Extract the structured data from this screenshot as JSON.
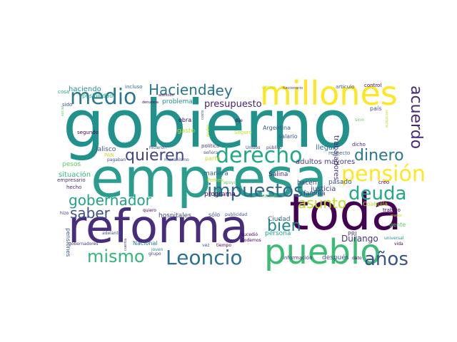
{
  "words": [
    {
      "text": "gobierno",
      "color": "#21918c",
      "weight": 1.0
    },
    {
      "text": "empresa",
      "color": "#2a9d8f",
      "weight": 0.88
    },
    {
      "text": "toda",
      "color": "#440154",
      "weight": 0.8
    },
    {
      "text": "reforma",
      "color": "#472d7b",
      "weight": 0.74
    },
    {
      "text": "millones",
      "color": "#fde725",
      "weight": 0.7
    },
    {
      "text": "pueblo",
      "color": "#3cbb75",
      "weight": 0.62
    },
    {
      "text": "medio",
      "color": "#2a788e",
      "weight": 0.5
    },
    {
      "text": "derecho",
      "color": "#22a884",
      "weight": 0.48
    },
    {
      "text": "pensión",
      "color": "#fde725",
      "weight": 0.48
    },
    {
      "text": "impuestos",
      "color": "#31688e",
      "weight": 0.44
    },
    {
      "text": "Leoncio",
      "color": "#2c728e",
      "weight": 0.44
    },
    {
      "text": "quieren",
      "color": "#414487",
      "weight": 0.42
    },
    {
      "text": "mismo",
      "color": "#35b779",
      "weight": 0.4
    },
    {
      "text": "deuda",
      "color": "#22a884",
      "weight": 0.4
    },
    {
      "text": "años",
      "color": "#3b528b",
      "weight": 0.4
    },
    {
      "text": "acuerdo",
      "color": "#482878",
      "weight": 0.38
    },
    {
      "text": "dinero",
      "color": "#2a788e",
      "weight": 0.36
    },
    {
      "text": "gobernador",
      "color": "#20a386",
      "weight": 0.34
    },
    {
      "text": "Hacienda",
      "color": "#2a788e",
      "weight": 0.32
    },
    {
      "text": "ley",
      "color": "#2c728e",
      "weight": 0.3
    },
    {
      "text": "asunto",
      "color": "#bddf26",
      "weight": 0.32
    },
    {
      "text": "saber",
      "color": "#3b528b",
      "weight": 0.32
    },
    {
      "text": "bien",
      "color": "#24868e",
      "weight": 0.3
    },
    {
      "text": "presupuesto",
      "color": "#481f70",
      "weight": 0.22
    },
    {
      "text": "trabajadores",
      "color": "#46327e",
      "weight": 0.18
    },
    {
      "text": "Durango",
      "color": "#46327e",
      "weight": 0.2
    },
    {
      "text": "haciendo",
      "color": "#21918c",
      "weight": 0.18
    },
    {
      "text": "situación",
      "color": "#35b779",
      "weight": 0.16
    },
    {
      "text": "adultos mayores",
      "color": "#443a83",
      "weight": 0.16
    },
    {
      "text": "pasado",
      "color": "#3b528b",
      "weight": 0.15
    },
    {
      "text": "Jalisco",
      "color": "#39568c",
      "weight": 0.15
    },
    {
      "text": "problema",
      "color": "#21918c",
      "weight": 0.14
    },
    {
      "text": "hospitales",
      "color": "#3e4a89",
      "weight": 0.14
    },
    {
      "text": "justicia",
      "color": "#414487",
      "weight": 0.15
    },
    {
      "text": "familia",
      "color": "#453781",
      "weight": 0.14
    },
    {
      "text": "programa",
      "color": "#440154",
      "weight": 0.14
    },
    {
      "text": "Salina",
      "color": "#472d7b",
      "weight": 0.13
    },
    {
      "text": "Argentina",
      "color": "#38588c",
      "weight": 0.13
    },
    {
      "text": "llegar",
      "color": "#2c728e",
      "weight": 0.15
    },
    {
      "text": "manera",
      "color": "#33638d",
      "weight": 0.14
    },
    {
      "text": "gasto",
      "color": "#bddf26",
      "weight": 0.13
    },
    {
      "text": "después",
      "color": "#3b528b",
      "weight": 0.13
    },
    {
      "text": "Ciudad",
      "color": "#31688e",
      "weight": 0.13
    },
    {
      "text": "persona",
      "color": "#22a884",
      "weight": 0.13
    },
    {
      "text": "pesos",
      "color": "#5ec962",
      "weight": 0.13
    },
    {
      "text": "posibilidad",
      "color": "#20a386",
      "weight": 0.12
    },
    {
      "text": "sólo",
      "color": "#3b528b",
      "weight": 0.12
    },
    {
      "text": "Coahuila",
      "color": "#bddf26",
      "weight": 0.12
    },
    {
      "text": "PRI",
      "color": "#443a83",
      "weight": 0.12
    },
    {
      "text": "hacen",
      "color": "#414487",
      "weight": 0.12
    },
    {
      "text": "gente",
      "color": "#5ec962",
      "weight": 0.12
    },
    {
      "text": "pensiones",
      "color": "#39568c",
      "weight": 0.12
    },
    {
      "text": "obra",
      "color": "#440154",
      "weight": 0.11
    },
    {
      "text": "país",
      "color": "#3b528b",
      "weight": 0.12
    },
    {
      "text": "salario",
      "color": "#3b528b",
      "weight": 0.11
    },
    {
      "text": "trabajo",
      "color": "#440154",
      "weight": 0.11
    },
    {
      "text": "Nacional",
      "color": "#2a788e",
      "weight": 0.11
    },
    {
      "text": "creo",
      "color": "#440154",
      "weight": 0.11
    },
    {
      "text": "hecho",
      "color": "#481f70",
      "weight": 0.1
    },
    {
      "text": "información",
      "color": "#453781",
      "weight": 0.1
    },
    {
      "text": "respecto",
      "color": "#33638d",
      "weight": 0.1
    },
    {
      "text": "incluso",
      "color": "#31688e",
      "weight": 0.1
    },
    {
      "text": "artículo",
      "color": "#33638d",
      "weight": 0.1
    },
    {
      "text": "control",
      "color": "#440154",
      "weight": 0.1
    },
    {
      "text": "sido",
      "color": "#3b528b",
      "weight": 0.1
    },
    {
      "text": "cosa",
      "color": "#20a386",
      "weight": 0.1
    },
    {
      "text": "segundo",
      "color": "#440154",
      "weight": 0.1
    },
    {
      "text": "empresario",
      "color": "#453781",
      "weight": 0.1
    },
    {
      "text": "PAN",
      "color": "#bddf26",
      "weight": 0.1
    },
    {
      "text": "Pemex",
      "color": "#bddf26",
      "weight": 0.1
    },
    {
      "text": "Seguro",
      "color": "#bddf26",
      "weight": 0.1
    },
    {
      "text": "parte",
      "color": "#bddf26",
      "weight": 0.11
    },
    {
      "text": "político",
      "color": "#453781",
      "weight": 0.1
    },
    {
      "text": "dicho",
      "color": "#481f70",
      "weight": 0.1
    },
    {
      "text": "dato",
      "color": "#440154",
      "weight": 0.09
    },
    {
      "text": "vida",
      "color": "#440154",
      "weight": 0.09
    },
    {
      "text": "universal",
      "color": "#21918c",
      "weight": 0.09
    },
    {
      "text": "podemos",
      "color": "#440154",
      "weight": 0.08
    },
    {
      "text": "rescate",
      "color": "#5ec962",
      "weight": 0.08
    },
    {
      "text": "publicidad",
      "color": "#3b528b",
      "weight": 0.08
    },
    {
      "text": "sucedió",
      "color": "#440154",
      "weight": 0.08
    },
    {
      "text": "tiempo",
      "color": "#440154",
      "weight": 0.08
    },
    {
      "text": "vez",
      "color": "#3b528b",
      "weight": 0.08
    },
    {
      "text": "quiero",
      "color": "#440154",
      "weight": 0.08
    },
    {
      "text": "grupo",
      "color": "#453781",
      "weight": 0.08
    },
    {
      "text": "joven",
      "color": "#21918c",
      "weight": 0.08
    },
    {
      "text": "adelante",
      "color": "#3b528b",
      "weight": 0.07
    },
    {
      "text": "gobernadores",
      "color": "#453781",
      "weight": 0.07
    },
    {
      "text": "cuenta",
      "color": "#453781",
      "weight": 0.07
    },
    {
      "text": "hizo",
      "color": "#453781",
      "weight": 0.08
    },
    {
      "text": "pagaban",
      "color": "#3b528b",
      "weight": 0.07
    },
    {
      "text": "mecanismo",
      "color": "#3b528b",
      "weight": 0.07
    },
    {
      "text": "señora",
      "color": "#3b528b",
      "weight": 0.07
    },
    {
      "text": "salud",
      "color": "#21918c",
      "weight": 0.07
    },
    {
      "text": "hicieron",
      "color": "#3b528b",
      "weight": 0.07
    },
    {
      "text": "apoyo",
      "color": "#5ec962",
      "weight": 0.07
    },
    {
      "text": "Unidos",
      "color": "#443a83",
      "weight": 0.07
    },
    {
      "text": "público",
      "color": "#443a83",
      "weight": 0.07
    },
    {
      "text": "dije",
      "color": "#440154",
      "weight": 0.07
    },
    {
      "text": "poder",
      "color": "#bddf26",
      "weight": 0.07
    },
    {
      "text": "costo",
      "color": "#3b528b",
      "weight": 0.07
    },
    {
      "text": "último",
      "color": "#bddf26",
      "weight": 0.07
    },
    {
      "text": "funcionario",
      "color": "#453781",
      "weight": 0.07
    },
    {
      "text": "atención",
      "color": "#440154",
      "weight": 0.07
    },
    {
      "text": "denuncia",
      "color": "#440154",
      "weight": 0.07
    },
    {
      "text": "social",
      "color": "#5ec962",
      "weight": 0.07
    },
    {
      "text": "sino",
      "color": "#5ec962",
      "weight": 0.07
    },
    {
      "text": "secretaria",
      "color": "#bddf26",
      "weight": 0.07
    },
    {
      "text": "mayor",
      "color": "#bddf26",
      "weight": 0.07
    }
  ]
}
